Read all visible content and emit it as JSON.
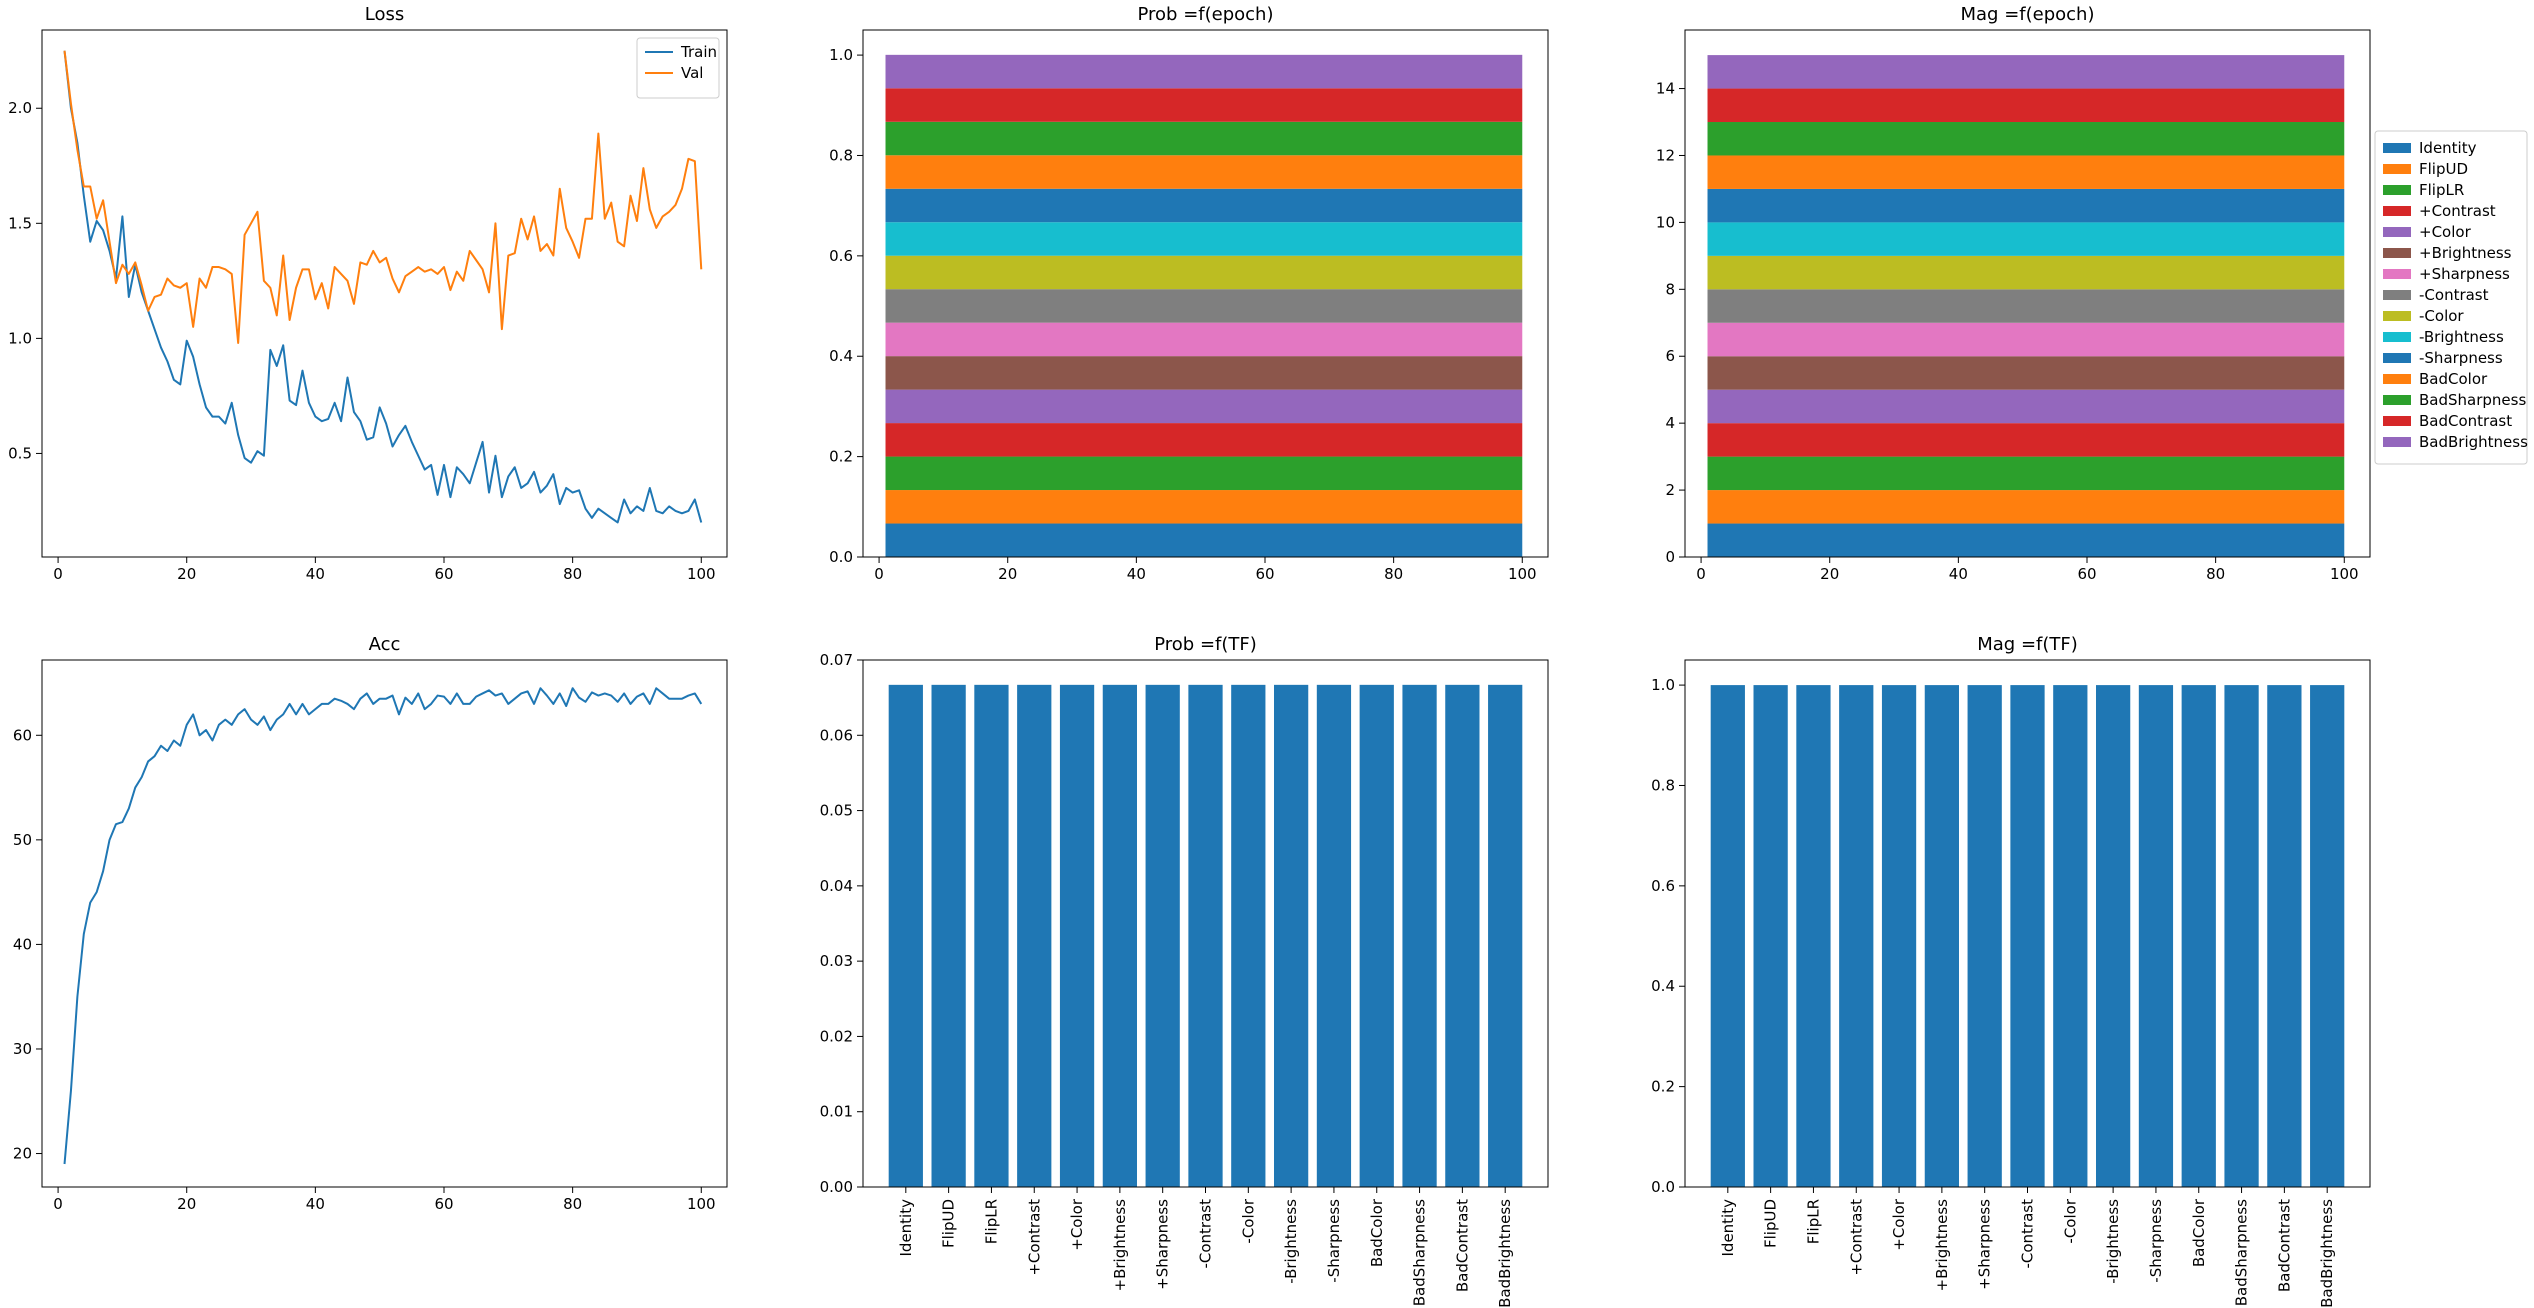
{
  "figure": {
    "background": "#ffffff"
  },
  "chart_data": [
    {
      "id": "loss",
      "type": "line",
      "title": "Loss",
      "xlabel": "",
      "ylabel": "",
      "xlim": [
        -2.5,
        104
      ],
      "ylim": [
        0.05,
        2.34
      ],
      "xticks": [
        0,
        20,
        40,
        60,
        80,
        100
      ],
      "yticks": [
        0.5,
        1.0,
        1.5,
        2.0
      ],
      "ytick_decimals": 1,
      "grid": false,
      "legend": "top-right",
      "series": [
        {
          "name": "Train",
          "color": "#1f77b4",
          "x_start": 1,
          "values": [
            2.25,
            2.0,
            1.85,
            1.62,
            1.42,
            1.51,
            1.47,
            1.38,
            1.26,
            1.53,
            1.18,
            1.32,
            1.2,
            1.12,
            1.04,
            0.96,
            0.9,
            0.82,
            0.8,
            0.99,
            0.92,
            0.8,
            0.7,
            0.66,
            0.66,
            0.63,
            0.72,
            0.58,
            0.48,
            0.46,
            0.51,
            0.49,
            0.95,
            0.88,
            0.97,
            0.73,
            0.71,
            0.86,
            0.72,
            0.66,
            0.64,
            0.65,
            0.72,
            0.64,
            0.83,
            0.68,
            0.64,
            0.56,
            0.57,
            0.7,
            0.63,
            0.53,
            0.58,
            0.62,
            0.55,
            0.49,
            0.43,
            0.45,
            0.32,
            0.45,
            0.31,
            0.44,
            0.41,
            0.37,
            0.46,
            0.55,
            0.33,
            0.49,
            0.31,
            0.4,
            0.44,
            0.35,
            0.37,
            0.42,
            0.33,
            0.36,
            0.41,
            0.28,
            0.35,
            0.33,
            0.34,
            0.26,
            0.22,
            0.26,
            0.24,
            0.22,
            0.2,
            0.3,
            0.24,
            0.27,
            0.25,
            0.35,
            0.25,
            0.24,
            0.27,
            0.25,
            0.24,
            0.25,
            0.3,
            0.2
          ]
        },
        {
          "name": "Val",
          "color": "#ff7f0e",
          "x_start": 1,
          "values": [
            2.25,
            2.02,
            1.82,
            1.66,
            1.66,
            1.52,
            1.6,
            1.42,
            1.24,
            1.32,
            1.28,
            1.33,
            1.23,
            1.12,
            1.18,
            1.19,
            1.26,
            1.23,
            1.22,
            1.24,
            1.05,
            1.26,
            1.22,
            1.31,
            1.31,
            1.3,
            1.28,
            0.98,
            1.45,
            1.5,
            1.55,
            1.25,
            1.22,
            1.1,
            1.36,
            1.08,
            1.22,
            1.3,
            1.3,
            1.17,
            1.24,
            1.13,
            1.31,
            1.28,
            1.25,
            1.15,
            1.33,
            1.32,
            1.38,
            1.33,
            1.35,
            1.26,
            1.2,
            1.27,
            1.29,
            1.31,
            1.29,
            1.3,
            1.28,
            1.31,
            1.21,
            1.29,
            1.25,
            1.38,
            1.34,
            1.3,
            1.2,
            1.5,
            1.04,
            1.36,
            1.37,
            1.52,
            1.43,
            1.53,
            1.38,
            1.41,
            1.36,
            1.65,
            1.48,
            1.42,
            1.35,
            1.52,
            1.52,
            1.89,
            1.52,
            1.59,
            1.42,
            1.4,
            1.62,
            1.51,
            1.74,
            1.56,
            1.48,
            1.53,
            1.55,
            1.58,
            1.65,
            1.78,
            1.77,
            1.3
          ]
        }
      ]
    },
    {
      "id": "prob_epoch",
      "type": "area",
      "title": "Prob =f(epoch)",
      "xlabel": "",
      "ylabel": "",
      "x_range": [
        1,
        100
      ],
      "xlim": [
        -2.5,
        104
      ],
      "ylim": [
        0,
        1.05
      ],
      "xticks": [
        0,
        20,
        40,
        60,
        80,
        100
      ],
      "yticks": [
        0.0,
        0.2,
        0.4,
        0.6,
        0.8,
        1.0
      ],
      "ytick_decimals": 1,
      "grid": false,
      "stacked": true,
      "layer_value": 0.0667,
      "layers": 15
    },
    {
      "id": "mag_epoch",
      "type": "area",
      "title": "Mag =f(epoch)",
      "xlabel": "",
      "ylabel": "",
      "x_range": [
        1,
        100
      ],
      "xlim": [
        -2.5,
        104
      ],
      "ylim": [
        0,
        15.75
      ],
      "xticks": [
        0,
        20,
        40,
        60,
        80,
        100
      ],
      "yticks": [
        0,
        2,
        4,
        6,
        8,
        10,
        12,
        14
      ],
      "ytick_decimals": 0,
      "grid": false,
      "stacked": true,
      "layer_value": 1.0,
      "layers": 15,
      "legend": "outside-right"
    },
    {
      "id": "acc",
      "type": "line",
      "title": "Acc",
      "xlabel": "",
      "ylabel": "",
      "xlim": [
        -2.5,
        104
      ],
      "ylim": [
        16.8,
        67.2
      ],
      "xticks": [
        0,
        20,
        40,
        60,
        80,
        100
      ],
      "yticks": [
        20,
        30,
        40,
        50,
        60
      ],
      "ytick_decimals": 0,
      "grid": false,
      "series": [
        {
          "color": "#1f77b4",
          "x_start": 1,
          "values": [
            19.0,
            26.0,
            35.0,
            41.0,
            44.0,
            45.0,
            47.0,
            50.0,
            51.5,
            51.7,
            53.0,
            55.0,
            56.0,
            57.5,
            58.0,
            59.0,
            58.5,
            59.5,
            59.0,
            61.0,
            62.0,
            60.0,
            60.5,
            59.5,
            61.0,
            61.5,
            61.0,
            62.0,
            62.5,
            61.5,
            61.0,
            61.8,
            60.5,
            61.5,
            62.0,
            63.0,
            62.0,
            63.0,
            62.0,
            62.5,
            63.0,
            63.0,
            63.5,
            63.3,
            63.0,
            62.5,
            63.5,
            64.0,
            63.0,
            63.5,
            63.5,
            63.8,
            62.0,
            63.6,
            63.0,
            64.0,
            62.5,
            63.0,
            63.8,
            63.7,
            63.0,
            64.0,
            63.0,
            63.0,
            63.7,
            64.0,
            64.3,
            63.8,
            64.0,
            63.0,
            63.5,
            64.0,
            64.2,
            63.0,
            64.5,
            63.8,
            63.0,
            64.0,
            62.8,
            64.5,
            63.6,
            63.2,
            64.1,
            63.8,
            64.0,
            63.8,
            63.2,
            64.0,
            63.0,
            63.7,
            64.0,
            63.0,
            64.5,
            64.0,
            63.5,
            63.5,
            63.5,
            63.8,
            64.0,
            63.0
          ]
        }
      ]
    },
    {
      "id": "prob_tf",
      "type": "bar",
      "title": "Prob =f(TF)",
      "xlabel": "",
      "ylabel": "",
      "ylim": [
        0,
        0.07
      ],
      "yticks": [
        0.0,
        0.01,
        0.02,
        0.03,
        0.04,
        0.05,
        0.06,
        0.07
      ],
      "ytick_decimals": 2,
      "grid": false,
      "bar_color": "#1f77b4",
      "categories": [
        "Identity",
        "FlipUD",
        "FlipLR",
        "+Contrast",
        "+Color",
        "+Brightness",
        "+Sharpness",
        "-Contrast",
        "-Color",
        "-Brightness",
        "-Sharpness",
        "BadColor",
        "BadSharpness",
        "BadContrast",
        "BadBrightness"
      ],
      "values": [
        0.0667,
        0.0667,
        0.0667,
        0.0667,
        0.0667,
        0.0667,
        0.0667,
        0.0667,
        0.0667,
        0.0667,
        0.0667,
        0.0667,
        0.0667,
        0.0667,
        0.0667
      ]
    },
    {
      "id": "mag_tf",
      "type": "bar",
      "title": "Mag =f(TF)",
      "xlabel": "",
      "ylabel": "",
      "ylim": [
        0,
        1.05
      ],
      "yticks": [
        0.0,
        0.2,
        0.4,
        0.6,
        0.8,
        1.0
      ],
      "ytick_decimals": 1,
      "grid": false,
      "bar_color": "#1f77b4",
      "categories": [
        "Identity",
        "FlipUD",
        "FlipLR",
        "+Contrast",
        "+Color",
        "+Brightness",
        "+Sharpness",
        "-Contrast",
        "-Color",
        "-Brightness",
        "-Sharpness",
        "BadColor",
        "BadSharpness",
        "BadContrast",
        "BadBrightness"
      ],
      "values": [
        1,
        1,
        1,
        1,
        1,
        1,
        1,
        1,
        1,
        1,
        1,
        1,
        1,
        1,
        1
      ]
    }
  ],
  "tf_legend": [
    {
      "label": "Identity",
      "color": "#1f77b4"
    },
    {
      "label": "FlipUD",
      "color": "#ff7f0e"
    },
    {
      "label": "FlipLR",
      "color": "#2ca02c"
    },
    {
      "label": "+Contrast",
      "color": "#d62728"
    },
    {
      "label": "+Color",
      "color": "#9467bd"
    },
    {
      "label": "+Brightness",
      "color": "#8c564b"
    },
    {
      "label": "+Sharpness",
      "color": "#e377c2"
    },
    {
      "label": "-Contrast",
      "color": "#7f7f7f"
    },
    {
      "label": "-Color",
      "color": "#bcbd22"
    },
    {
      "label": "-Brightness",
      "color": "#17becf"
    },
    {
      "label": "-Sharpness",
      "color": "#1f77b4"
    },
    {
      "label": "BadColor",
      "color": "#ff7f0e"
    },
    {
      "label": "BadSharpness",
      "color": "#2ca02c"
    },
    {
      "label": "BadContrast",
      "color": "#d62728"
    },
    {
      "label": "BadBrightness",
      "color": "#9467bd"
    }
  ]
}
